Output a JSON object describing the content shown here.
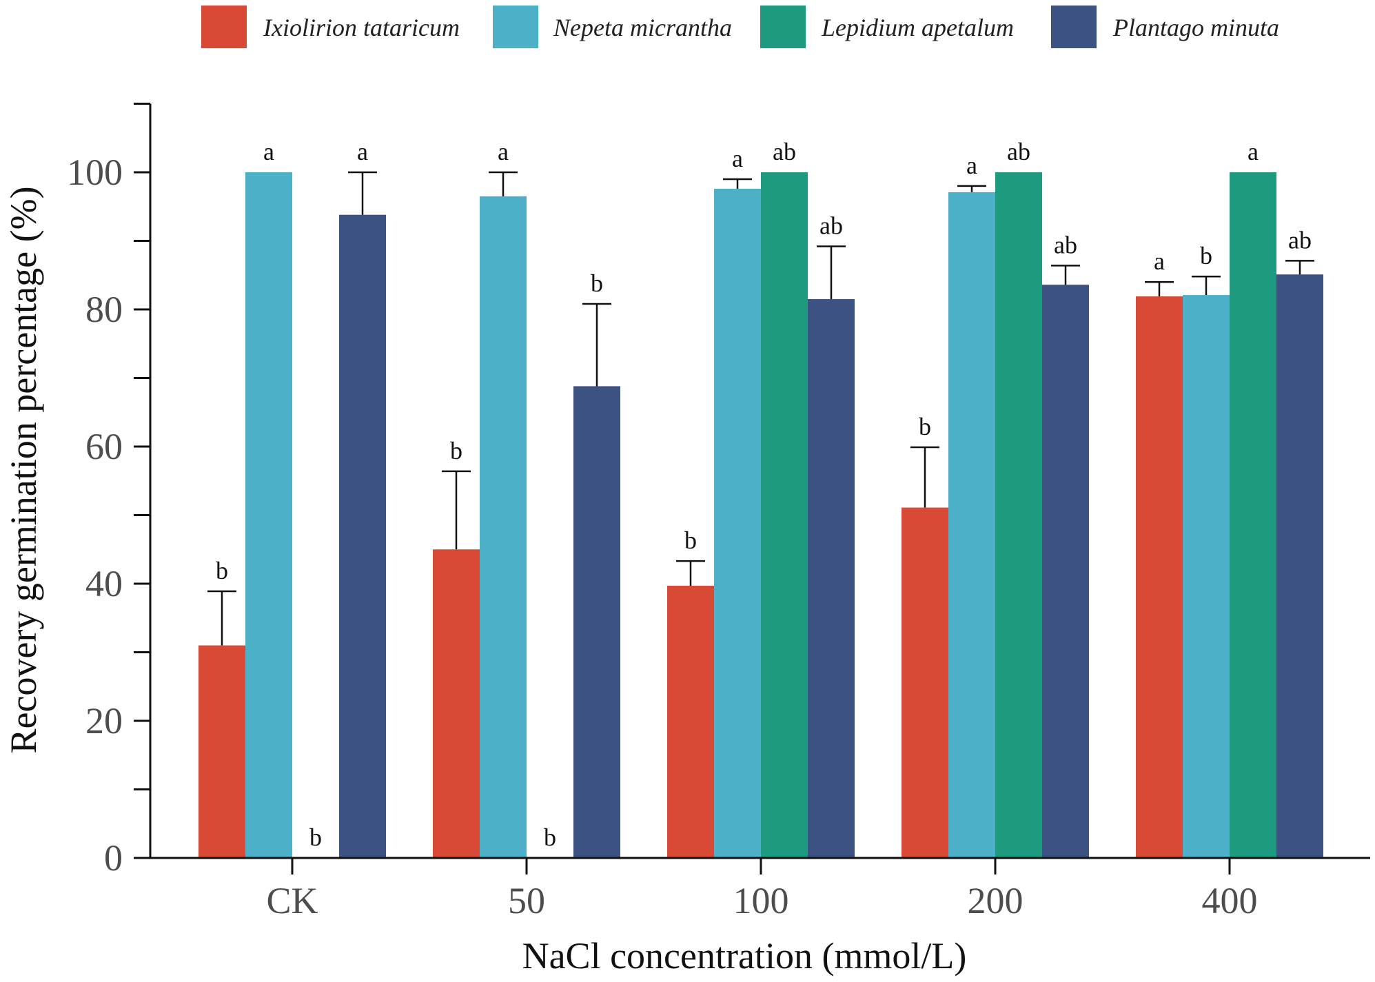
{
  "chart_data": {
    "type": "bar",
    "title": "",
    "xlabel": "NaCl concentration (mmol/L)",
    "ylabel": "Recovery germination percentage (%)",
    "ylim": [
      0,
      110
    ],
    "yticks": [
      0,
      20,
      40,
      60,
      80,
      100
    ],
    "grid": false,
    "legend_position": "top",
    "categories": [
      "CK",
      "50",
      "100",
      "200",
      "400"
    ],
    "series": [
      {
        "name": "Ixiolirion tataricum",
        "color": "#d94a36",
        "values": [
          31,
          45,
          39.7,
          51.1,
          81.9
        ],
        "errors": [
          7.9,
          11.4,
          3.6,
          8.8,
          2.1
        ],
        "labels": [
          "b",
          "b",
          "b",
          "b",
          "a"
        ]
      },
      {
        "name": "Nepeta micrantha",
        "color": "#4bb0c8",
        "values": [
          100,
          96.5,
          97.6,
          97.1,
          82.1
        ],
        "errors": [
          0,
          3.5,
          1.4,
          0.9,
          2.7
        ],
        "labels": [
          "a",
          "a",
          "a",
          "a",
          "b"
        ]
      },
      {
        "name": "Lepidium apetalum",
        "color": "#1e9a7e",
        "values": [
          0,
          0,
          100,
          100,
          100
        ],
        "errors": [
          0,
          0,
          0,
          0,
          0
        ],
        "labels": [
          "b",
          "b",
          "ab",
          "ab",
          "a"
        ]
      },
      {
        "name": "Plantago minuta",
        "color": "#3c5282",
        "values": [
          93.8,
          68.8,
          81.5,
          83.6,
          85.1
        ],
        "errors": [
          6.2,
          12.0,
          7.7,
          2.8,
          2.0
        ],
        "labels": [
          "a",
          "b",
          "ab",
          "ab",
          "ab"
        ]
      }
    ]
  }
}
